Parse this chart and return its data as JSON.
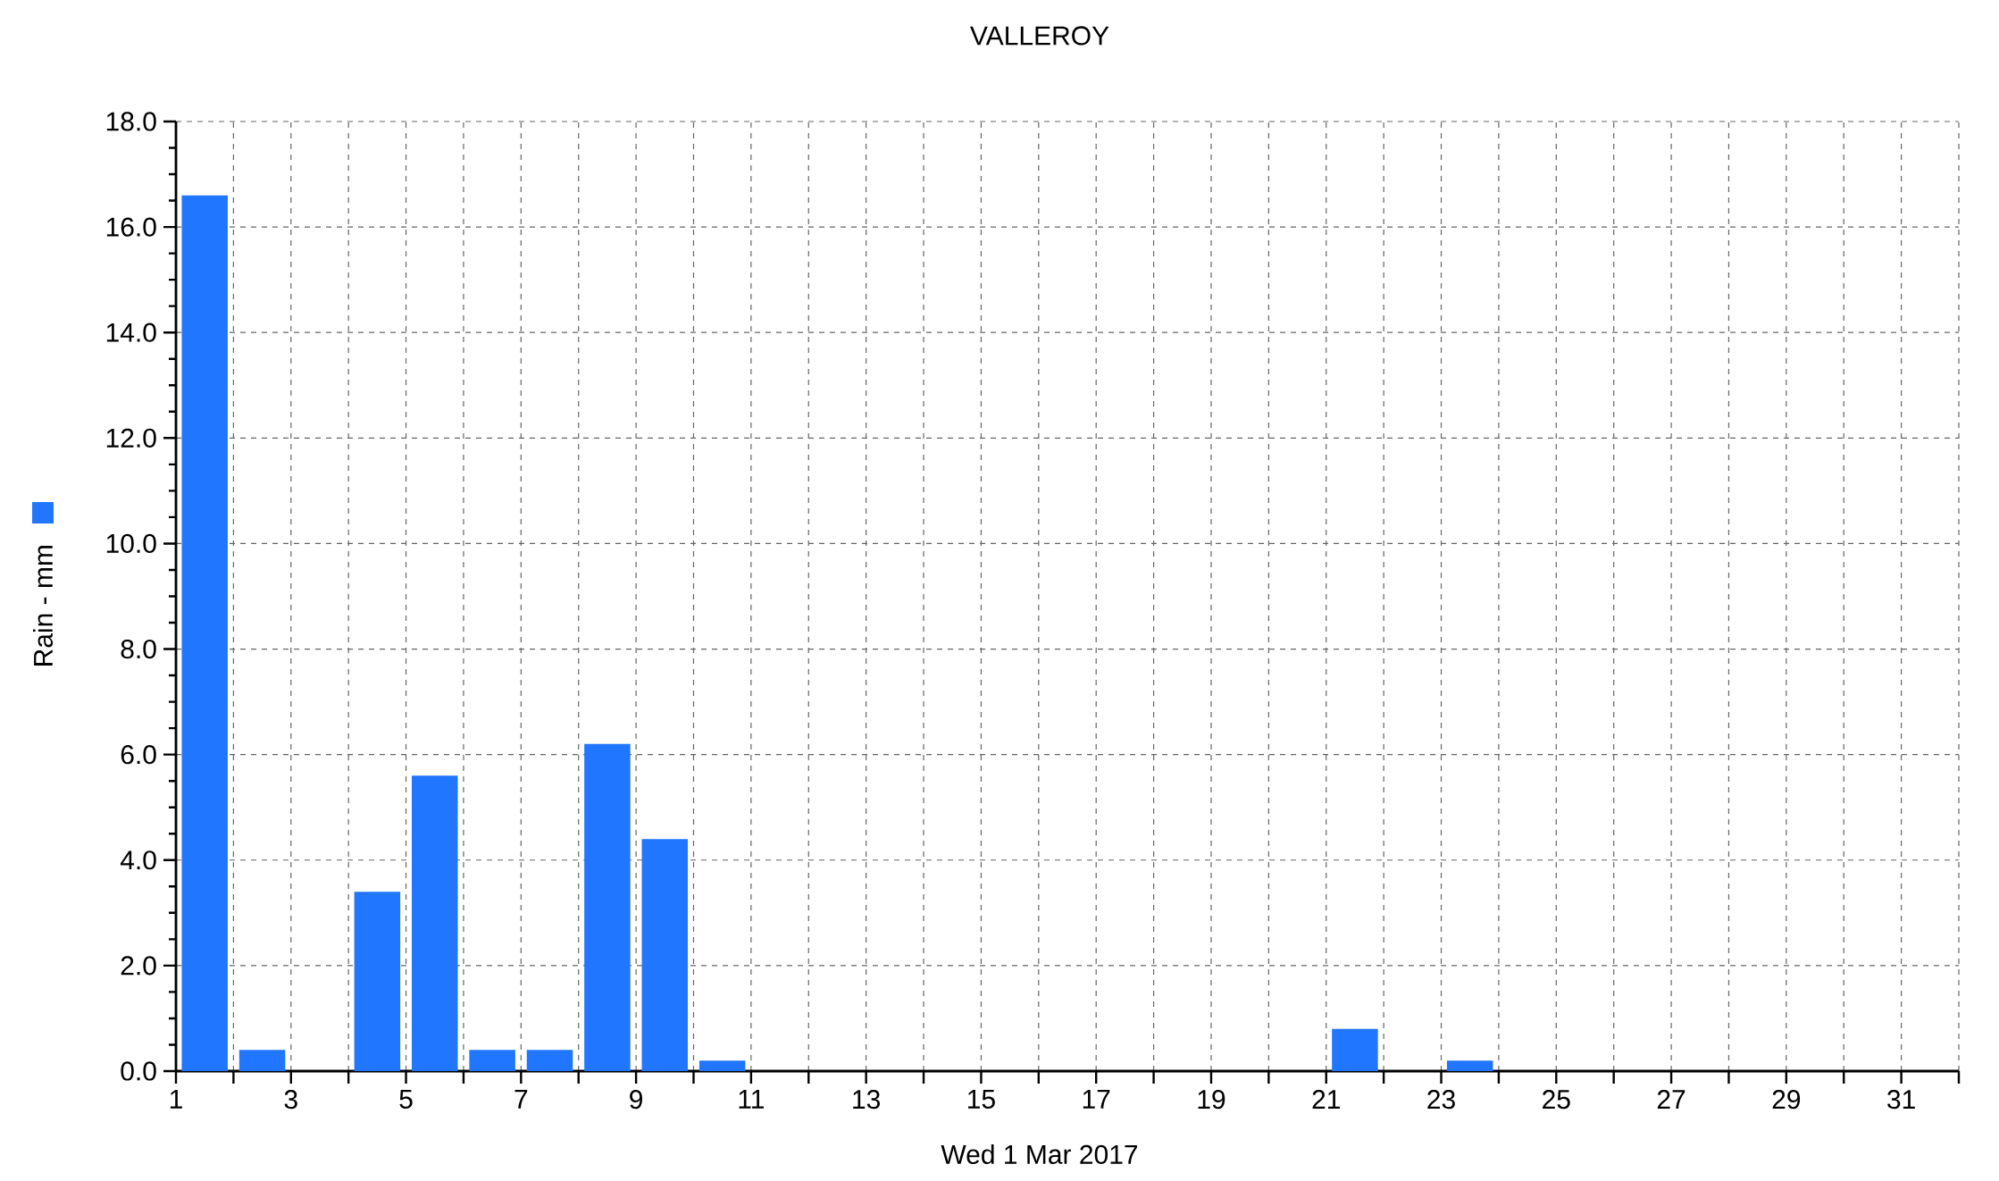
{
  "chart_data": {
    "type": "bar",
    "title": "VALLEROY",
    "xlabel": "Wed 1 Mar 2017",
    "x": [
      "2017-03-01T12:00",
      "2017-03-02T12:00",
      "2017-03-03T12:00",
      "2017-03-04T12:00",
      "2017-03-05T12:00",
      "2017-03-06T12:00",
      "2017-03-07T12:00",
      "2017-03-08T12:00",
      "2017-03-09T12:00",
      "2017-03-10T12:00",
      "2017-03-11T12:00",
      "2017-03-12T12:00",
      "2017-03-13T12:00",
      "2017-03-14T12:00",
      "2017-03-15T12:00",
      "2017-03-16T12:00",
      "2017-03-17T12:00",
      "2017-03-18T12:00",
      "2017-03-19T12:00",
      "2017-03-20T12:00",
      "2017-03-21T12:00",
      "2017-03-22T12:00",
      "2017-03-23T12:00",
      "2017-03-24T12:00",
      "2017-03-25T12:00",
      "2017-03-26T12:00",
      "2017-03-27T12:00",
      "2017-03-28T12:00",
      "2017-03-29T12:00",
      "2017-03-30T12:00",
      "2017-03-31T12:00"
    ],
    "series": [
      {
        "name": "Rain - mm",
        "color": "#2176ff",
        "values": [
          16.6,
          0.4,
          0,
          3.4,
          5.6,
          0.4,
          0.4,
          6.2,
          4.4,
          0.2,
          0,
          0,
          0,
          0,
          0,
          0,
          0,
          0,
          0,
          0,
          0.8,
          0,
          0.2,
          0,
          0,
          0,
          0,
          0,
          0,
          0,
          0
        ]
      }
    ],
    "xlim": [
      "2017-03-01",
      "2017-04-01"
    ],
    "xticks": [
      {
        "value": "2017-03-01",
        "label": "1"
      },
      {
        "value": "2017-03-02",
        "label": null
      },
      {
        "value": "2017-03-03",
        "label": "3"
      },
      {
        "value": "2017-03-04",
        "label": null
      },
      {
        "value": "2017-03-05",
        "label": "5"
      },
      {
        "value": "2017-03-06",
        "label": null
      },
      {
        "value": "2017-03-07",
        "label": "7"
      },
      {
        "value": "2017-03-08",
        "label": null
      },
      {
        "value": "2017-03-09",
        "label": "9"
      },
      {
        "value": "2017-03-10",
        "label": null
      },
      {
        "value": "2017-03-11",
        "label": "11"
      },
      {
        "value": "2017-03-12",
        "label": null
      },
      {
        "value": "2017-03-13",
        "label": "13"
      },
      {
        "value": "2017-03-14",
        "label": null
      },
      {
        "value": "2017-03-15",
        "label": "15"
      },
      {
        "value": "2017-03-16",
        "label": null
      },
      {
        "value": "2017-03-17",
        "label": "17"
      },
      {
        "value": "2017-03-18",
        "label": null
      },
      {
        "value": "2017-03-19",
        "label": "19"
      },
      {
        "value": "2017-03-20",
        "label": null
      },
      {
        "value": "2017-03-21",
        "label": "21"
      },
      {
        "value": "2017-03-22",
        "label": null
      },
      {
        "value": "2017-03-23",
        "label": "23"
      },
      {
        "value": "2017-03-24",
        "label": null
      },
      {
        "value": "2017-03-25",
        "label": "25"
      },
      {
        "value": "2017-03-26",
        "label": null
      },
      {
        "value": "2017-03-27",
        "label": "27"
      },
      {
        "value": "2017-03-28",
        "label": null
      },
      {
        "value": "2017-03-29",
        "label": "29"
      },
      {
        "value": "2017-03-30",
        "label": null
      },
      {
        "value": "2017-03-31",
        "label": "31"
      },
      {
        "value": "2017-04-01",
        "label": null
      }
    ],
    "ylim": [
      0,
      18
    ],
    "yticks": [
      {
        "value": 0,
        "label": "0.0"
      },
      {
        "value": 0.5,
        "label": null
      },
      {
        "value": 1,
        "label": null
      },
      {
        "value": 1.5,
        "label": null
      },
      {
        "value": 2,
        "label": "2.0"
      },
      {
        "value": 2.5,
        "label": null
      },
      {
        "value": 3,
        "label": null
      },
      {
        "value": 3.5,
        "label": null
      },
      {
        "value": 4,
        "label": "4.0"
      },
      {
        "value": 4.5,
        "label": null
      },
      {
        "value": 5,
        "label": null
      },
      {
        "value": 5.5,
        "label": null
      },
      {
        "value": 6,
        "label": "6.0"
      },
      {
        "value": 6.5,
        "label": null
      },
      {
        "value": 7,
        "label": null
      },
      {
        "value": 7.5,
        "label": null
      },
      {
        "value": 8,
        "label": "8.0"
      },
      {
        "value": 8.5,
        "label": null
      },
      {
        "value": 9,
        "label": null
      },
      {
        "value": 9.5,
        "label": null
      },
      {
        "value": 10,
        "label": "10.0"
      },
      {
        "value": 10.5,
        "label": null
      },
      {
        "value": 11,
        "label": null
      },
      {
        "value": 11.5,
        "label": null
      },
      {
        "value": 12,
        "label": "12.0"
      },
      {
        "value": 12.5,
        "label": null
      },
      {
        "value": 13,
        "label": null
      },
      {
        "value": 13.5,
        "label": null
      },
      {
        "value": 14,
        "label": "14.0"
      },
      {
        "value": 14.5,
        "label": null
      },
      {
        "value": 15,
        "label": null
      },
      {
        "value": 15.5,
        "label": null
      },
      {
        "value": 16,
        "label": "16.0"
      },
      {
        "value": 16.5,
        "label": null
      },
      {
        "value": 17,
        "label": null
      },
      {
        "value": 17.5,
        "label": null
      },
      {
        "value": 18,
        "label": "18.0"
      }
    ],
    "grid": true,
    "legend": "left"
  }
}
